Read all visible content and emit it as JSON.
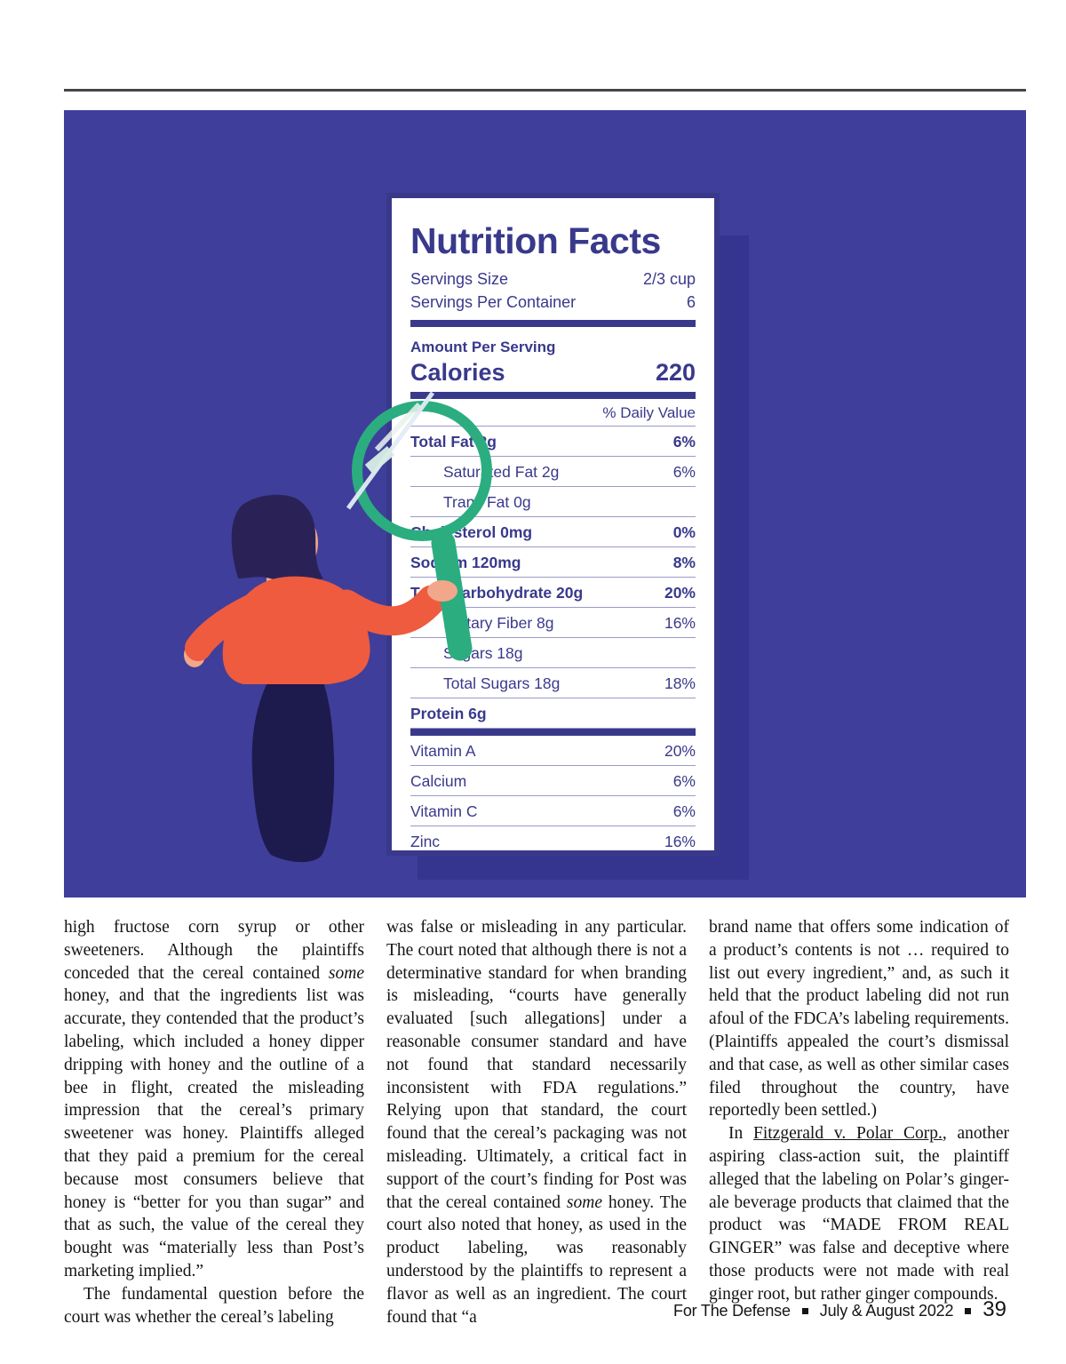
{
  "footer": {
    "publication": "For The Defense",
    "issue": "July & August 2022",
    "page_number": "39"
  },
  "illustration": {
    "description": "woman holding green magnifying glass up to a giant nutrition facts label",
    "colors": {
      "background": "#3F3E9A",
      "card_shadow": "#35348E",
      "card_border": "#39398C",
      "label_text": "#39398C",
      "magnifier_green": "#2BAD80",
      "blouse_orange": "#EE5B3F",
      "skirt_navy": "#1D1A4D",
      "hair_navy": "#2A2256",
      "skin": "#F2A78A"
    },
    "nutrition_label": {
      "title": "Nutrition Facts",
      "serving_rows": [
        {
          "label": "Servings Size",
          "value": "2/3 cup"
        },
        {
          "label": "Servings Per Container",
          "value": "6"
        }
      ],
      "amount_header": "Amount Per Serving",
      "calories_label": "Calories",
      "calories_value": "220",
      "daily_value_header": "% Daily Value",
      "nutrient_rows": [
        {
          "label": "Total Fat 2g",
          "value": "6%",
          "bold": true,
          "indent": false
        },
        {
          "label": "Saturated Fat 2g",
          "value": "6%",
          "bold": false,
          "indent": true
        },
        {
          "label": "Trans Fat 0g",
          "value": "",
          "bold": false,
          "indent": true
        },
        {
          "label": "Cholesterol 0mg",
          "value": "0%",
          "bold": true,
          "indent": false
        },
        {
          "label": "Sodium 120mg",
          "value": "8%",
          "bold": true,
          "indent": false
        },
        {
          "label": "Total Carbohydrate 20g",
          "value": "20%",
          "bold": true,
          "indent": false
        },
        {
          "label": "Dietary Fiber 8g",
          "value": "16%",
          "bold": false,
          "indent": true
        },
        {
          "label": "Sugars 18g",
          "value": "",
          "bold": false,
          "indent": true
        },
        {
          "label": "Total Sugars 18g",
          "value": "18%",
          "bold": false,
          "indent": true
        },
        {
          "label": "Protein 6g",
          "value": "",
          "bold": true,
          "indent": false
        }
      ],
      "vitamin_rows": [
        {
          "label": "Vitamin A",
          "value": "20%"
        },
        {
          "label": "Calcium",
          "value": "6%"
        },
        {
          "label": "Vitamin C",
          "value": "6%"
        },
        {
          "label": "Zinc",
          "value": "16%"
        }
      ]
    }
  },
  "article": {
    "columns": [
      {
        "paragraphs": [
          {
            "indent": false,
            "segments": [
              {
                "style": "normal",
                "text": "high fructose corn syrup or other sweeteners. Although the plaintiffs conceded that the cereal contained "
              },
              {
                "style": "italic",
                "text": "some"
              },
              {
                "style": "normal",
                "text": " honey, and that the ingredients list was accurate, they contended that the product’s labeling, which included a honey dipper dripping with honey and the outline of a bee in flight, created the misleading impression that the cereal’s primary sweetener was honey. Plaintiffs alleged that they paid a premium for the cereal because most consumers believe that honey is “better for you than sugar” and that as such, the value of the cereal they bought was “materially less than Post’s marketing implied.”"
              }
            ]
          },
          {
            "indent": true,
            "segments": [
              {
                "style": "normal",
                "text": "The fundamental question before the court was whether the cereal’s labeling"
              }
            ]
          }
        ]
      },
      {
        "paragraphs": [
          {
            "indent": false,
            "segments": [
              {
                "style": "normal",
                "text": "was false or misleading in any particular. The court noted that although there is not a determinative standard for when branding is misleading, “courts have generally evaluated [such allegations] under a reasonable consumer standard and have not found that standard necessarily inconsistent with FDA regulations.” Relying upon that standard, the court found that the cereal’s packaging was not misleading. Ultimately, a critical fact in support of the court’s finding for Post was that the cereal contained "
              },
              {
                "style": "italic",
                "text": "some"
              },
              {
                "style": "normal",
                "text": " honey. The court also noted that honey, as used in the product labeling, was reasonably understood by the plaintiffs to represent a flavor as well as an ingredient. The court found that “a"
              }
            ]
          }
        ]
      },
      {
        "paragraphs": [
          {
            "indent": false,
            "segments": [
              {
                "style": "normal",
                "text": "brand name that offers some indication of a product’s contents is not … required to list out every ingredient,” and, as such it held that the product labeling did not run afoul of the FDCA’s labeling requirements. (Plaintiffs appealed the court’s dismissal and that case, as well as other similar cases filed throughout the country, have reportedly been settled.)"
              }
            ]
          },
          {
            "indent": true,
            "segments": [
              {
                "style": "normal",
                "text": "In "
              },
              {
                "style": "underline",
                "text": "Fitzgerald v. Polar Corp."
              },
              {
                "style": "normal",
                "text": ", another aspiring class-action suit, the plaintiff alleged that the labeling on Polar’s ginger-ale beverage products that claimed that the product was “MADE FROM REAL GINGER” was false and deceptive where those products were not made with real ginger root, but rather ginger compounds."
              }
            ]
          }
        ]
      }
    ]
  }
}
